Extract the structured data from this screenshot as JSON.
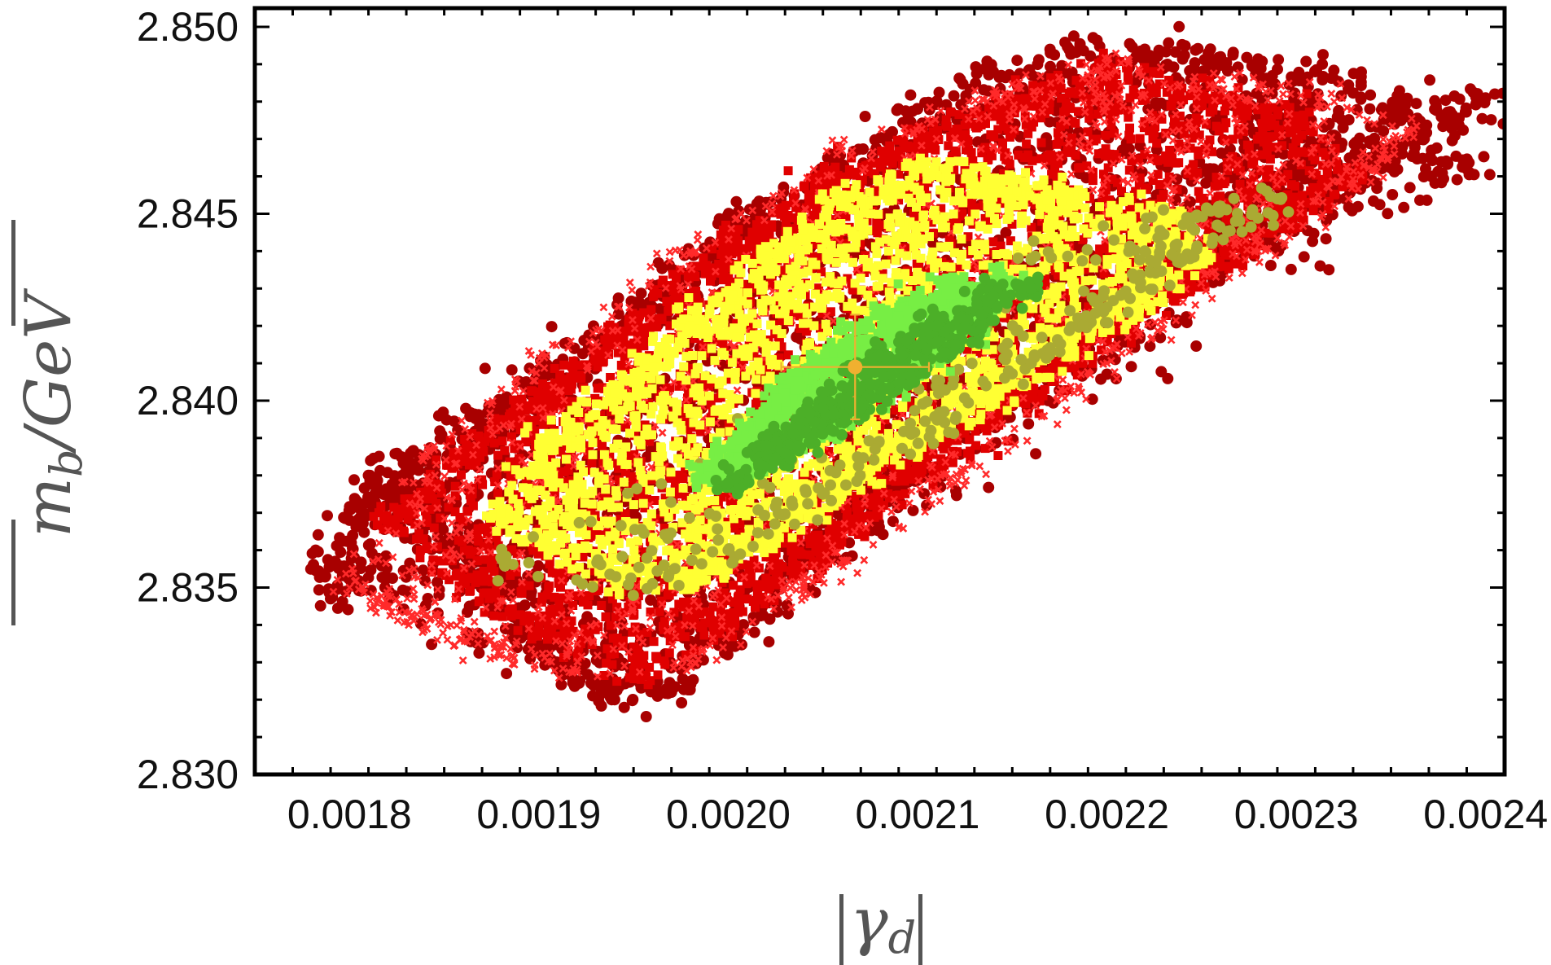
{
  "chart_data": {
    "type": "scatter",
    "title": "",
    "xlabel": "|γ_d|",
    "ylabel": "|m_b/GeV|",
    "xlim": [
      0.00175,
      0.00241
    ],
    "ylim": [
      2.83,
      2.8505
    ],
    "x_ticks": [
      {
        "value": 0.0018,
        "label": "0.0018"
      },
      {
        "value": 0.0019,
        "label": "0.0019"
      },
      {
        "value": 0.002,
        "label": "0.0020"
      },
      {
        "value": 0.0021,
        "label": "0.0021"
      },
      {
        "value": 0.0022,
        "label": "0.0022"
      },
      {
        "value": 0.0023,
        "label": "0.0023"
      },
      {
        "value": 0.0024,
        "label": "0.0024"
      }
    ],
    "y_ticks": [
      {
        "value": 2.83,
        "label": "2.830"
      },
      {
        "value": 2.835,
        "label": "2.835"
      },
      {
        "value": 2.84,
        "label": "2.840"
      },
      {
        "value": 2.845,
        "label": "2.845"
      },
      {
        "value": 2.85,
        "label": "2.850"
      }
    ],
    "grid": false,
    "frame": true,
    "series": [
      {
        "color": "#a80000",
        "marker": "circle",
        "points": [
          [
            0.00178,
            2.8355
          ],
          [
            0.00179,
            2.8347
          ],
          [
            0.0018,
            2.8368
          ],
          [
            0.00181,
            2.838
          ],
          [
            0.00183,
            2.8375
          ],
          [
            0.00186,
            2.836
          ],
          [
            0.00188,
            2.8345
          ],
          [
            0.0019,
            2.8335
          ],
          [
            0.00192,
            2.8325
          ],
          [
            0.00194,
            2.832
          ],
          [
            0.00197,
            2.8322
          ],
          [
            0.002,
            2.8335
          ],
          [
            0.00203,
            2.8355
          ],
          [
            0.00206,
            2.837
          ],
          [
            0.0021,
            2.8385
          ],
          [
            0.00214,
            2.84
          ],
          [
            0.00218,
            2.8418
          ],
          [
            0.00222,
            2.843
          ],
          [
            0.00226,
            2.844
          ],
          [
            0.0023,
            2.8452
          ],
          [
            0.00233,
            2.8462
          ],
          [
            0.00236,
            2.847
          ],
          [
            0.00238,
            2.8475
          ],
          [
            0.0024,
            2.8481
          ],
          [
            0.00239,
            2.8462
          ],
          [
            0.00235,
            2.8478
          ],
          [
            0.00231,
            2.8488
          ],
          [
            0.00226,
            2.8492
          ],
          [
            0.00222,
            2.8494
          ],
          [
            0.00218,
            2.8494
          ],
          [
            0.00214,
            2.8488
          ],
          [
            0.0021,
            2.8478
          ],
          [
            0.00205,
            2.8462
          ],
          [
            0.002,
            2.8448
          ],
          [
            0.00195,
            2.8425
          ],
          [
            0.0019,
            2.8405
          ],
          [
            0.00186,
            2.839
          ],
          [
            0.00183,
            2.8382
          ]
        ],
        "density": 3200
      },
      {
        "color": "#e00000",
        "marker": "square",
        "points": [
          [
            0.00182,
            2.8368
          ],
          [
            0.00186,
            2.8352
          ],
          [
            0.0019,
            2.8338
          ],
          [
            0.00195,
            2.8328
          ],
          [
            0.002,
            2.834
          ],
          [
            0.00205,
            2.8362
          ],
          [
            0.0021,
            2.8382
          ],
          [
            0.00215,
            2.8402
          ],
          [
            0.0022,
            2.842
          ],
          [
            0.00225,
            2.8435
          ],
          [
            0.0023,
            2.845
          ],
          [
            0.00233,
            2.846
          ],
          [
            0.0023,
            2.8475
          ],
          [
            0.00225,
            2.8482
          ],
          [
            0.0022,
            2.8488
          ],
          [
            0.00215,
            2.848
          ],
          [
            0.0021,
            2.847
          ],
          [
            0.00205,
            2.8458
          ],
          [
            0.002,
            2.8442
          ],
          [
            0.00195,
            2.842
          ],
          [
            0.0019,
            2.84
          ],
          [
            0.00186,
            2.8385
          ]
        ],
        "density": 3600
      },
      {
        "color": "#ff2a2a",
        "marker": "cross",
        "points": [
          [
            0.0018,
            2.835
          ],
          [
            0.00182,
            2.8345
          ],
          [
            0.00184,
            2.834
          ],
          [
            0.00188,
            2.8332
          ],
          [
            0.00192,
            2.8328
          ],
          [
            0.00198,
            2.833
          ],
          [
            0.00204,
            2.835
          ],
          [
            0.00212,
            2.8378
          ],
          [
            0.0022,
            2.841
          ],
          [
            0.00228,
            2.844
          ],
          [
            0.00234,
            2.8462
          ],
          [
            0.00236,
            2.8472
          ],
          [
            0.00232,
            2.848
          ],
          [
            0.00226,
            2.8486
          ],
          [
            0.0022,
            2.849
          ],
          [
            0.00214,
            2.8482
          ],
          [
            0.00206,
            2.8468
          ],
          [
            0.00198,
            2.844
          ],
          [
            0.0019,
            2.841
          ],
          [
            0.00184,
            2.8385
          ]
        ],
        "density": 1600
      },
      {
        "color": "#ffff33",
        "marker": "square",
        "points": [
          [
            0.00188,
            2.837
          ],
          [
            0.0019,
            2.8362
          ],
          [
            0.00194,
            2.8352
          ],
          [
            0.00198,
            2.8352
          ],
          [
            0.00202,
            2.8362
          ],
          [
            0.00206,
            2.8378
          ],
          [
            0.0021,
            2.839
          ],
          [
            0.00214,
            2.8402
          ],
          [
            0.00218,
            2.8415
          ],
          [
            0.00222,
            2.8428
          ],
          [
            0.00225,
            2.844
          ],
          [
            0.00223,
            2.845
          ],
          [
            0.00218,
            2.8455
          ],
          [
            0.00214,
            2.8458
          ],
          [
            0.0021,
            2.8462
          ],
          [
            0.00206,
            2.8455
          ],
          [
            0.00202,
            2.8438
          ],
          [
            0.00198,
            2.842
          ],
          [
            0.00194,
            2.8402
          ],
          [
            0.0019,
            2.8388
          ]
        ],
        "density": 2600
      },
      {
        "color": "#aaaa33",
        "marker": "circle",
        "points": [
          [
            0.00188,
            2.8358
          ],
          [
            0.00192,
            2.8352
          ],
          [
            0.00196,
            2.8351
          ],
          [
            0.002,
            2.836
          ],
          [
            0.00205,
            2.8375
          ],
          [
            0.00212,
            2.8395
          ],
          [
            0.00216,
            2.841
          ],
          [
            0.0022,
            2.8425
          ],
          [
            0.00224,
            2.8438
          ],
          [
            0.00227,
            2.8448
          ],
          [
            0.00229,
            2.8454
          ],
          [
            0.00226,
            2.8452
          ],
          [
            0.00222,
            2.8446
          ],
          [
            0.00216,
            2.8438
          ]
        ],
        "density": 300
      },
      {
        "color": "#77ee44",
        "marker": "square",
        "points": [
          [
            0.00199,
            2.838
          ],
          [
            0.00201,
            2.839
          ],
          [
            0.00203,
            2.8402
          ],
          [
            0.00206,
            2.8415
          ],
          [
            0.00209,
            2.8425
          ],
          [
            0.00212,
            2.843
          ],
          [
            0.00215,
            2.8432
          ],
          [
            0.00213,
            2.8422
          ],
          [
            0.00209,
            2.8405
          ],
          [
            0.00205,
            2.8392
          ],
          [
            0.00201,
            2.8382
          ]
        ],
        "density": 1100
      },
      {
        "color": "#4caf28",
        "marker": "circle",
        "points": [
          [
            0.002,
            2.8378
          ],
          [
            0.00202,
            2.8388
          ],
          [
            0.00205,
            2.8398
          ],
          [
            0.00208,
            2.8412
          ],
          [
            0.00211,
            2.842
          ],
          [
            0.00214,
            2.8428
          ],
          [
            0.00216,
            2.843
          ],
          [
            0.00212,
            2.8415
          ],
          [
            0.00207,
            2.8398
          ],
          [
            0.00203,
            2.8386
          ]
        ],
        "density": 500
      }
    ],
    "reference_point": {
      "x": 0.002067,
      "y": 2.8409,
      "x_err": 3.9e-05,
      "y_err": 0.0014,
      "color": "#f0b030"
    }
  }
}
